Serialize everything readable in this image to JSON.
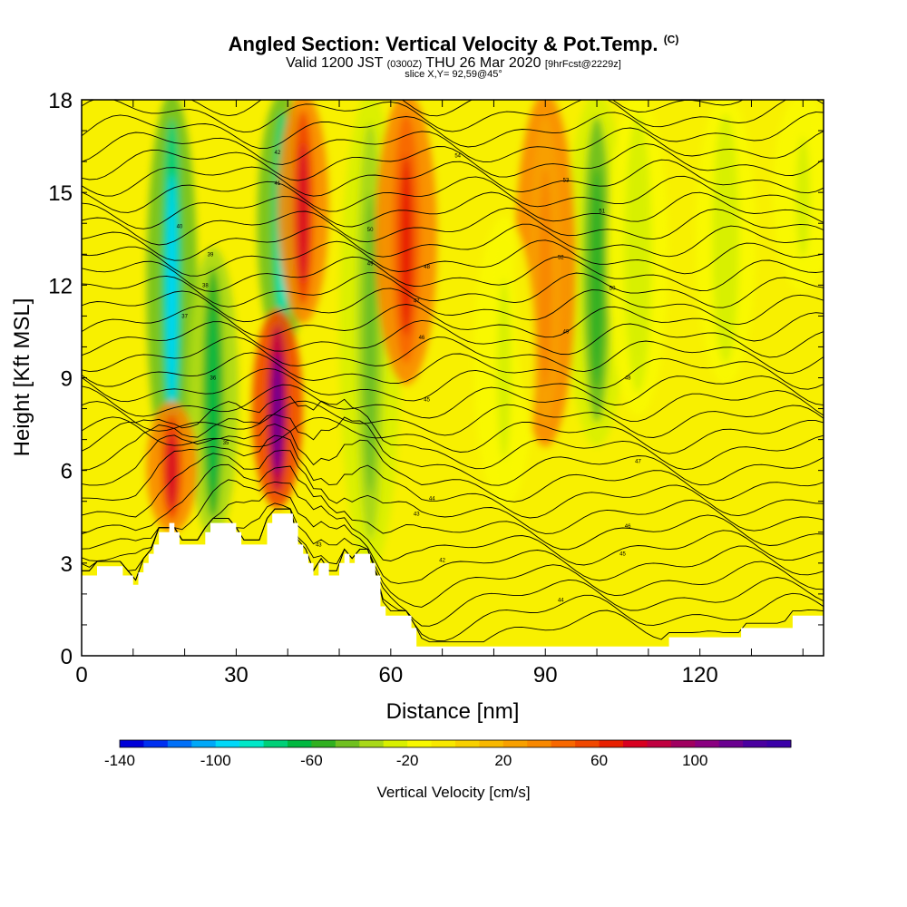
{
  "title": {
    "main": "Angled Section: Vertical Velocity & Pot.Temp.",
    "main_suffix": "(C)",
    "valid_prefix": "Valid 1200 JST",
    "valid_zulu": "(0300Z)",
    "valid_date": "THU 26 Mar 2020",
    "forecast": "[9hrFcst@2229z]",
    "slice": "slice X,Y= 92,59@45°"
  },
  "chart_data": {
    "type": "heatmap",
    "xlabel": "Distance [nm]",
    "ylabel": "Height [Kft MSL]",
    "xlim": [
      0,
      144
    ],
    "ylim": [
      0,
      18
    ],
    "x_ticks": [
      0,
      30,
      60,
      90,
      120
    ],
    "y_ticks": [
      0,
      3,
      6,
      9,
      12,
      15,
      18
    ],
    "colorbar": {
      "label": "Vertical Velocity [cm/s]",
      "min": -140,
      "max": 140,
      "step": 10,
      "tick_labels": [
        -140,
        -100,
        -60,
        -20,
        20,
        60,
        100
      ],
      "colors": [
        "#0000d8",
        "#0030f0",
        "#0070f8",
        "#00a8f8",
        "#00d8f8",
        "#00e8c8",
        "#00d078",
        "#00b840",
        "#30b020",
        "#70c020",
        "#a8d818",
        "#d8f000",
        "#f8f800",
        "#f8e800",
        "#f8d000",
        "#f8b800",
        "#f8a000",
        "#f88800",
        "#f86800",
        "#f04800",
        "#e82000",
        "#d80020",
        "#c00040",
        "#a00060",
        "#8a0080",
        "#6a0090",
        "#4a00a0",
        "#3a00a8"
      ]
    },
    "velocity_features_cm_s": [
      {
        "x": 17.5,
        "y0": 6,
        "y1": 18,
        "value": -100
      },
      {
        "x": 25.5,
        "y0": 4,
        "y1": 13,
        "value": -70
      },
      {
        "x": 39,
        "y0": 10,
        "y1": 18,
        "value": -90
      },
      {
        "x": 38,
        "y0": 5,
        "y1": 11,
        "value": 110
      },
      {
        "x": 43,
        "y0": 11,
        "y1": 18,
        "value": 70
      },
      {
        "x": 17.5,
        "y0": 4.2,
        "y1": 8,
        "value": 70
      },
      {
        "x": 56,
        "y0": 3,
        "y1": 18,
        "value": -50
      },
      {
        "x": 63,
        "y0": 9,
        "y1": 18,
        "value": 60
      },
      {
        "x": 100,
        "y0": 7,
        "y1": 18,
        "value": -55
      },
      {
        "x": 108,
        "y0": 8,
        "y1": 18,
        "value": -30
      },
      {
        "x": 90,
        "y0": 7,
        "y1": 18,
        "value": 35
      },
      {
        "x": 82,
        "y0": 5,
        "y1": 14,
        "value": -25
      },
      {
        "x": 125,
        "y0": 9,
        "y1": 18,
        "value": -30
      },
      {
        "x": 140,
        "y0": 12,
        "y1": 18,
        "value": -25
      }
    ],
    "terrain_kft": [
      [
        0,
        2.6
      ],
      [
        3,
        2.6
      ],
      [
        3,
        2.9
      ],
      [
        8,
        2.9
      ],
      [
        8,
        2.6
      ],
      [
        10,
        2.6
      ],
      [
        10,
        2.3
      ],
      [
        11,
        2.3
      ],
      [
        11,
        2.7
      ],
      [
        12,
        2.7
      ],
      [
        12,
        3
      ],
      [
        13,
        3
      ],
      [
        13,
        3.3
      ],
      [
        14,
        3.3
      ],
      [
        14,
        3.6
      ],
      [
        15,
        3.6
      ],
      [
        15,
        4
      ],
      [
        17,
        4
      ],
      [
        17,
        4.3
      ],
      [
        18,
        4.3
      ],
      [
        18,
        4
      ],
      [
        19,
        4
      ],
      [
        19,
        3.6
      ],
      [
        24,
        3.6
      ],
      [
        24,
        4
      ],
      [
        25,
        4
      ],
      [
        25,
        4.3
      ],
      [
        30,
        4.3
      ],
      [
        30,
        4
      ],
      [
        31,
        4
      ],
      [
        31,
        3.6
      ],
      [
        36,
        3.6
      ],
      [
        36,
        4.3
      ],
      [
        37,
        4.3
      ],
      [
        37,
        4.6
      ],
      [
        41,
        4.6
      ],
      [
        41,
        4.3
      ],
      [
        42,
        4.3
      ],
      [
        42,
        3.6
      ],
      [
        43,
        3.6
      ],
      [
        43,
        3.3
      ],
      [
        44,
        3.3
      ],
      [
        44,
        3
      ],
      [
        45,
        3
      ],
      [
        45,
        2.6
      ],
      [
        46,
        2.6
      ],
      [
        46,
        3
      ],
      [
        48,
        3
      ],
      [
        48,
        2.6
      ],
      [
        50,
        2.6
      ],
      [
        50,
        3
      ],
      [
        51,
        3
      ],
      [
        51,
        3.3
      ],
      [
        52,
        3.3
      ],
      [
        52,
        3
      ],
      [
        53,
        3
      ],
      [
        53,
        3.3
      ],
      [
        56,
        3.3
      ],
      [
        56,
        3
      ],
      [
        57,
        3
      ],
      [
        57,
        2.6
      ],
      [
        58,
        2.6
      ],
      [
        58,
        1.6
      ],
      [
        59,
        1.6
      ],
      [
        59,
        1.3
      ],
      [
        64,
        1.3
      ],
      [
        64,
        0.9
      ],
      [
        65,
        0.9
      ],
      [
        65,
        0.3
      ],
      [
        114,
        0.3
      ],
      [
        114,
        0.6
      ],
      [
        128,
        0.6
      ],
      [
        128,
        0.9
      ],
      [
        138,
        0.9
      ],
      [
        138,
        1.3
      ],
      [
        144,
        1.3
      ]
    ],
    "isentrope_labels": [
      {
        "text": "54",
        "x": 73,
        "y": 16.2
      },
      {
        "text": "53",
        "x": 94,
        "y": 15.4
      },
      {
        "text": "42",
        "x": 38,
        "y": 16.3
      },
      {
        "text": "41",
        "x": 38,
        "y": 15.3
      },
      {
        "text": "40",
        "x": 19,
        "y": 13.9
      },
      {
        "text": "39",
        "x": 25,
        "y": 13
      },
      {
        "text": "38",
        "x": 24,
        "y": 12
      },
      {
        "text": "37",
        "x": 20,
        "y": 11
      },
      {
        "text": "36",
        "x": 25.5,
        "y": 9
      },
      {
        "text": "35",
        "x": 28,
        "y": 6.9
      },
      {
        "text": "50",
        "x": 56,
        "y": 13.8
      },
      {
        "text": "49",
        "x": 56,
        "y": 12.7
      },
      {
        "text": "48",
        "x": 67,
        "y": 12.6
      },
      {
        "text": "47",
        "x": 65,
        "y": 11.5
      },
      {
        "text": "46",
        "x": 66,
        "y": 10.3
      },
      {
        "text": "45",
        "x": 67,
        "y": 8.3
      },
      {
        "text": "44",
        "x": 68,
        "y": 5.1
      },
      {
        "text": "43",
        "x": 65,
        "y": 4.6
      },
      {
        "text": "52",
        "x": 93,
        "y": 12.9
      },
      {
        "text": "51",
        "x": 101,
        "y": 14.4
      },
      {
        "text": "50",
        "x": 103,
        "y": 11.9
      },
      {
        "text": "49",
        "x": 94,
        "y": 10.5
      },
      {
        "text": "48",
        "x": 106,
        "y": 9
      },
      {
        "text": "47",
        "x": 108,
        "y": 6.3
      },
      {
        "text": "46",
        "x": 106,
        "y": 4.2
      },
      {
        "text": "45",
        "x": 105,
        "y": 3.3
      },
      {
        "text": "44",
        "x": 93,
        "y": 1.8
      },
      {
        "text": "43",
        "x": 46,
        "y": 3.6
      },
      {
        "text": "42",
        "x": 70,
        "y": 3.1
      }
    ]
  }
}
